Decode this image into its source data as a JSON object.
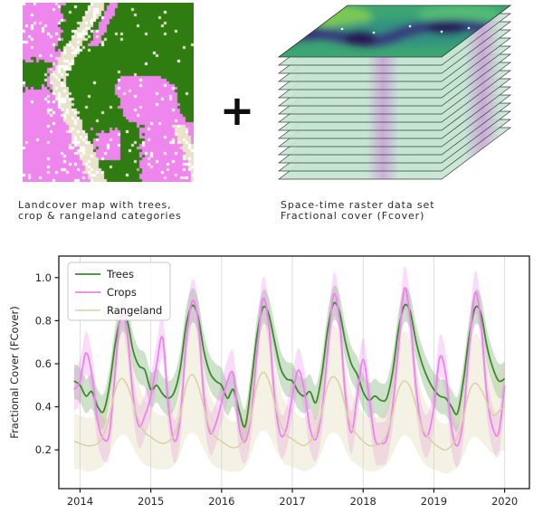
{
  "top_row": {
    "plus_sign": "+",
    "landcover": {
      "caption_line1": "Landcover map with trees,",
      "caption_line2": "crop & rangeland categories",
      "categories": [
        {
          "name": "trees",
          "color": "#2f7d11"
        },
        {
          "name": "crop",
          "color": "#ee86ee"
        },
        {
          "name": "rangeland",
          "color": "#e9e3cc"
        }
      ],
      "speckle_color": "#ffffff"
    },
    "raster_stack": {
      "caption_line1": "Space-time raster data set",
      "caption_line2": "Fractional cover (Fcover)",
      "num_layers": 16,
      "sheet_fill": "#c5e6d3",
      "sheet_streak": "#c9a9d6",
      "sheet_stroke": "#3f3f3f",
      "top_face": {
        "base": "#3ba573",
        "light": "#8ed44b",
        "mid_green": "#57c077",
        "teal": "#2b7f8e",
        "dark_band": "#39327f",
        "deep": "#23104f",
        "dots": "#ffffff"
      }
    }
  },
  "chart_data": {
    "type": "line",
    "title": "",
    "xlabel": "",
    "ylabel": "Fractional Cover (FCover)",
    "xlim": [
      2013.7,
      2020.35
    ],
    "ylim": [
      0.02,
      1.1
    ],
    "xticks": [
      2014,
      2015,
      2016,
      2017,
      2018,
      2019,
      2020
    ],
    "xtick_labels": [
      "2014",
      "2015",
      "2016",
      "2017",
      "2018",
      "2019",
      "2020"
    ],
    "yticks": [
      0.2,
      0.4,
      0.6,
      0.8,
      1.0
    ],
    "ytick_labels": [
      "0.2",
      "0.4",
      "0.6",
      "0.8",
      "1.0"
    ],
    "grid": "vertical-only",
    "grid_color": "#dcdcdc",
    "legend_position": "upper-left",
    "x_unit": "decimal_year",
    "x_start": 2013.9167,
    "x_step": 0.08333,
    "series": [
      {
        "name": "Trees",
        "color": "#3c8a2e",
        "line_width": 1.8,
        "band_alpha": 0.25,
        "band_halfwidth": 0.08,
        "values": [
          0.52,
          0.5,
          0.45,
          0.47,
          0.4,
          0.38,
          0.5,
          0.7,
          0.82,
          0.8,
          0.66,
          0.59,
          0.57,
          0.48,
          0.5,
          0.46,
          0.44,
          0.47,
          0.58,
          0.78,
          0.87,
          0.82,
          0.66,
          0.56,
          0.52,
          0.5,
          0.44,
          0.48,
          0.38,
          0.31,
          0.5,
          0.73,
          0.86,
          0.83,
          0.7,
          0.58,
          0.53,
          0.52,
          0.47,
          0.45,
          0.47,
          0.42,
          0.55,
          0.76,
          0.88,
          0.84,
          0.7,
          0.6,
          0.55,
          0.47,
          0.43,
          0.45,
          0.43,
          0.44,
          0.56,
          0.76,
          0.87,
          0.84,
          0.7,
          0.6,
          0.53,
          0.48,
          0.45,
          0.44,
          0.4,
          0.37,
          0.52,
          0.73,
          0.86,
          0.83,
          0.68,
          0.58,
          0.52,
          0.53
        ]
      },
      {
        "name": "Crops",
        "color": "#ee82ee",
        "line_width": 1.8,
        "band_alpha": 0.28,
        "band_halfwidth": 0.1,
        "values": [
          0.48,
          0.52,
          0.65,
          0.55,
          0.33,
          0.25,
          0.28,
          0.58,
          0.86,
          0.74,
          0.45,
          0.31,
          0.36,
          0.45,
          0.6,
          0.72,
          0.4,
          0.24,
          0.35,
          0.7,
          0.89,
          0.8,
          0.45,
          0.28,
          0.32,
          0.42,
          0.52,
          0.55,
          0.3,
          0.24,
          0.36,
          0.65,
          0.9,
          0.78,
          0.44,
          0.27,
          0.3,
          0.45,
          0.57,
          0.48,
          0.3,
          0.25,
          0.38,
          0.66,
          0.92,
          0.8,
          0.45,
          0.28,
          0.45,
          0.62,
          0.45,
          0.25,
          0.23,
          0.25,
          0.4,
          0.68,
          0.95,
          0.8,
          0.48,
          0.3,
          0.27,
          0.4,
          0.63,
          0.55,
          0.3,
          0.22,
          0.35,
          0.68,
          0.93,
          0.78,
          0.45,
          0.3,
          0.28,
          0.5
        ]
      },
      {
        "name": "Rangeland",
        "color": "#d8d2a2",
        "line_width": 1.5,
        "band_alpha": 0.28,
        "values": [
          0.24,
          0.23,
          0.22,
          0.22,
          0.23,
          0.27,
          0.36,
          0.48,
          0.53,
          0.5,
          0.42,
          0.33,
          0.28,
          0.26,
          0.24,
          0.23,
          0.24,
          0.27,
          0.36,
          0.5,
          0.55,
          0.5,
          0.4,
          0.3,
          0.26,
          0.24,
          0.22,
          0.21,
          0.22,
          0.26,
          0.36,
          0.5,
          0.56,
          0.52,
          0.42,
          0.32,
          0.27,
          0.25,
          0.23,
          0.22,
          0.24,
          0.28,
          0.38,
          0.5,
          0.54,
          0.5,
          0.4,
          0.31,
          0.27,
          0.24,
          0.22,
          0.22,
          0.23,
          0.27,
          0.37,
          0.48,
          0.52,
          0.49,
          0.4,
          0.3,
          0.26,
          0.23,
          0.21,
          0.2,
          0.22,
          0.26,
          0.35,
          0.47,
          0.51,
          0.48,
          0.42,
          0.36,
          0.38,
          0.4
        ],
        "band_lower": [
          0.11,
          0.11,
          0.1,
          0.1,
          0.11,
          0.13,
          0.18,
          0.24,
          0.27,
          0.26,
          0.21,
          0.16,
          0.13,
          0.12,
          0.11,
          0.11,
          0.11,
          0.13,
          0.18,
          0.26,
          0.28,
          0.26,
          0.2,
          0.15,
          0.12,
          0.11,
          0.1,
          0.1,
          0.1,
          0.12,
          0.18,
          0.26,
          0.29,
          0.27,
          0.21,
          0.16,
          0.13,
          0.12,
          0.11,
          0.1,
          0.11,
          0.13,
          0.19,
          0.26,
          0.28,
          0.26,
          0.2,
          0.15,
          0.13,
          0.11,
          0.1,
          0.1,
          0.11,
          0.13,
          0.18,
          0.24,
          0.27,
          0.25,
          0.2,
          0.15,
          0.12,
          0.11,
          0.1,
          0.09,
          0.1,
          0.12,
          0.17,
          0.24,
          0.26,
          0.24,
          0.21,
          0.18,
          0.19,
          0.2
        ],
        "band_upper": [
          0.37,
          0.36,
          0.35,
          0.35,
          0.36,
          0.41,
          0.54,
          0.7,
          0.77,
          0.73,
          0.62,
          0.5,
          0.43,
          0.4,
          0.37,
          0.36,
          0.37,
          0.41,
          0.54,
          0.73,
          0.79,
          0.73,
          0.59,
          0.46,
          0.4,
          0.37,
          0.35,
          0.33,
          0.35,
          0.4,
          0.54,
          0.73,
          0.81,
          0.75,
          0.62,
          0.48,
          0.41,
          0.39,
          0.36,
          0.35,
          0.37,
          0.43,
          0.56,
          0.73,
          0.78,
          0.73,
          0.59,
          0.47,
          0.41,
          0.37,
          0.35,
          0.35,
          0.36,
          0.41,
          0.55,
          0.7,
          0.75,
          0.71,
          0.59,
          0.46,
          0.4,
          0.36,
          0.33,
          0.32,
          0.35,
          0.4,
          0.52,
          0.68,
          0.74,
          0.7,
          0.62,
          0.54,
          0.56,
          0.59
        ]
      }
    ]
  }
}
